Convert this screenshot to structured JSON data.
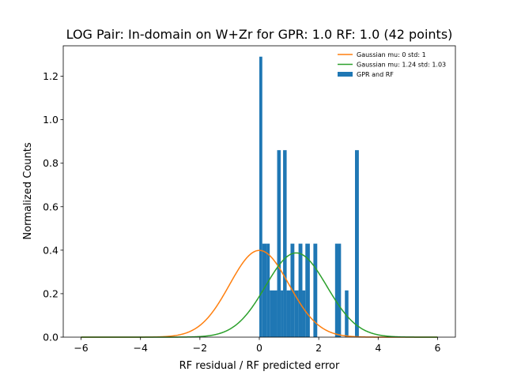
{
  "chart_data": {
    "type": "bar",
    "title": "LOG Pair: In-domain on W+Zr for GPR: 1.0 RF: 1.0 (42 points)",
    "xlabel": "RF residual / RF predicted error",
    "ylabel": "Normalized Counts",
    "xlim": [
      -6.6,
      6.6
    ],
    "ylim": [
      0,
      1.34
    ],
    "xticks": [
      -6,
      -4,
      -2,
      0,
      2,
      4,
      6
    ],
    "xtick_labels": [
      "−6",
      "−4",
      "−2",
      "0",
      "2",
      "4",
      "6"
    ],
    "yticks": [
      0.0,
      0.2,
      0.4,
      0.6,
      0.8,
      1.0,
      1.2
    ],
    "ytick_labels": [
      "0.0",
      "0.2",
      "0.4",
      "0.6",
      "0.8",
      "1.0",
      "1.2"
    ],
    "legend_position": "top-right",
    "colors": {
      "gaussian_std": "#ff7f0e",
      "gaussian_fit": "#2ca02c",
      "bars": "#1f77b4"
    },
    "series": [
      {
        "name": "Gaussian mu: 0 std: 1",
        "kind": "line",
        "mu": 0,
        "std": 1
      },
      {
        "name": "Gaussian mu: 1.24 std: 1.03",
        "kind": "line",
        "mu": 1.24,
        "std": 1.03
      },
      {
        "name": "GPR and RF",
        "kind": "histogram",
        "bins": [
          {
            "x0": 0.0,
            "x1": 0.1,
            "value": 1.29
          },
          {
            "x0": 0.1,
            "x1": 0.25,
            "value": 0.43
          },
          {
            "x0": 0.25,
            "x1": 0.35,
            "value": 0.43
          },
          {
            "x0": 0.35,
            "x1": 0.6,
            "value": 0.215
          },
          {
            "x0": 0.6,
            "x1": 0.72,
            "value": 0.86
          },
          {
            "x0": 0.72,
            "x1": 0.8,
            "value": 0.215
          },
          {
            "x0": 0.8,
            "x1": 0.92,
            "value": 0.86
          },
          {
            "x0": 0.92,
            "x1": 1.05,
            "value": 0.215
          },
          {
            "x0": 1.05,
            "x1": 1.18,
            "value": 0.43
          },
          {
            "x0": 1.18,
            "x1": 1.32,
            "value": 0.215
          },
          {
            "x0": 1.32,
            "x1": 1.45,
            "value": 0.43
          },
          {
            "x0": 1.45,
            "x1": 1.55,
            "value": 0.215
          },
          {
            "x0": 1.55,
            "x1": 1.7,
            "value": 0.43
          },
          {
            "x0": 1.82,
            "x1": 1.95,
            "value": 0.43
          },
          {
            "x0": 2.55,
            "x1": 2.75,
            "value": 0.43
          },
          {
            "x0": 2.88,
            "x1": 3.0,
            "value": 0.215
          },
          {
            "x0": 3.22,
            "x1": 3.35,
            "value": 0.86
          }
        ]
      }
    ]
  }
}
